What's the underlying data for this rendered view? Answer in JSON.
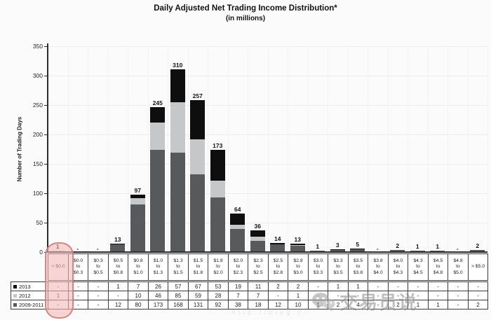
{
  "title": "Daily Adjusted Net Trading Income Distribution*",
  "subtitle": "(in millions)",
  "ylabel": "Number of Trading Days",
  "colors": {
    "series_2013": "#0e0e0e",
    "series_2012": "#c6c7c9",
    "series_2009_2011": "#58595b",
    "highlight_fill": "rgba(243,185,185,0.60)",
    "highlight_border": "rgba(206,120,120,0.85)",
    "axis": "#2c2c2c",
    "grid": "#ececec"
  },
  "watermark": {
    "brand": "交易员说",
    "url_fragment": "http://blog.c"
  },
  "chart_data": {
    "type": "bar",
    "stacked": true,
    "title": "Daily Adjusted Net Trading Income Distribution*",
    "subtitle": "(in millions)",
    "xlabel": "",
    "ylabel": "Number of Trading Days",
    "ylim": [
      0,
      350
    ],
    "yticks": [
      0,
      50,
      100,
      150,
      200,
      250,
      300,
      350
    ],
    "grid": true,
    "legend_position": "table-left",
    "categories": [
      "< $0.0",
      "$0.0\nto\n$0.3",
      "$0.3\nto\n$0.5",
      "$0.5\nto\n$0.8",
      "$0.8\nto\n$1.0",
      "$1.0\nto\n$1.3",
      "$1.3\nto\n$1.5",
      "$1.5\nto\n$1.8",
      "$1.8\nto\n$2.0",
      "$2.0\nto\n$2.3",
      "$2.3\nto\n$2.5",
      "$2.5\nto\n$2.8",
      "$2.8\nto\n$3.0",
      "$3.0\nto\n$3.3",
      "$3.3\nto\n$3.5",
      "$3.5\nto\n$3.8",
      "$3.8\nto\n$4.0",
      "$4.0\nto\n$4.3",
      "$4.3\nto\n$4.5",
      "$4.5\nto\n$4.8",
      "$4.8\nto\n$5.0",
      "> $5.0"
    ],
    "totals": [
      "1",
      "-",
      "-",
      "13",
      "97",
      "245",
      "310",
      "257",
      "173",
      "64",
      "36",
      "14",
      "13",
      "1",
      "3",
      "5",
      "-",
      "2",
      "1",
      "1",
      "-",
      "2"
    ],
    "series": [
      {
        "name": "2013",
        "color": "#0e0e0e",
        "values": [
          "-",
          "-",
          "-",
          "1",
          "7",
          "26",
          "57",
          "67",
          "53",
          "19",
          "11",
          "2",
          "2",
          "-",
          "1",
          "1",
          "-",
          "-",
          "-",
          "-",
          "-",
          "-"
        ]
      },
      {
        "name": "2012",
        "color": "#c6c7c9",
        "values": [
          "1",
          "-",
          "-",
          "-",
          "10",
          "46",
          "85",
          "59",
          "28",
          "7",
          "7",
          "-",
          "1",
          "-",
          "-",
          "-",
          "-",
          "-",
          "-",
          "-",
          "-",
          "-"
        ]
      },
      {
        "name": "2009-2011",
        "color": "#58595b",
        "values": [
          "-",
          "-",
          "-",
          "12",
          "80",
          "173",
          "168",
          "131",
          "92",
          "38",
          "18",
          "12",
          "10",
          "1",
          "2",
          "4",
          "-",
          "2",
          "1",
          "1",
          "-",
          "2"
        ]
      }
    ],
    "annotation": "pink highlight circle on the < $0.0 column (value 1, from 2012)"
  }
}
